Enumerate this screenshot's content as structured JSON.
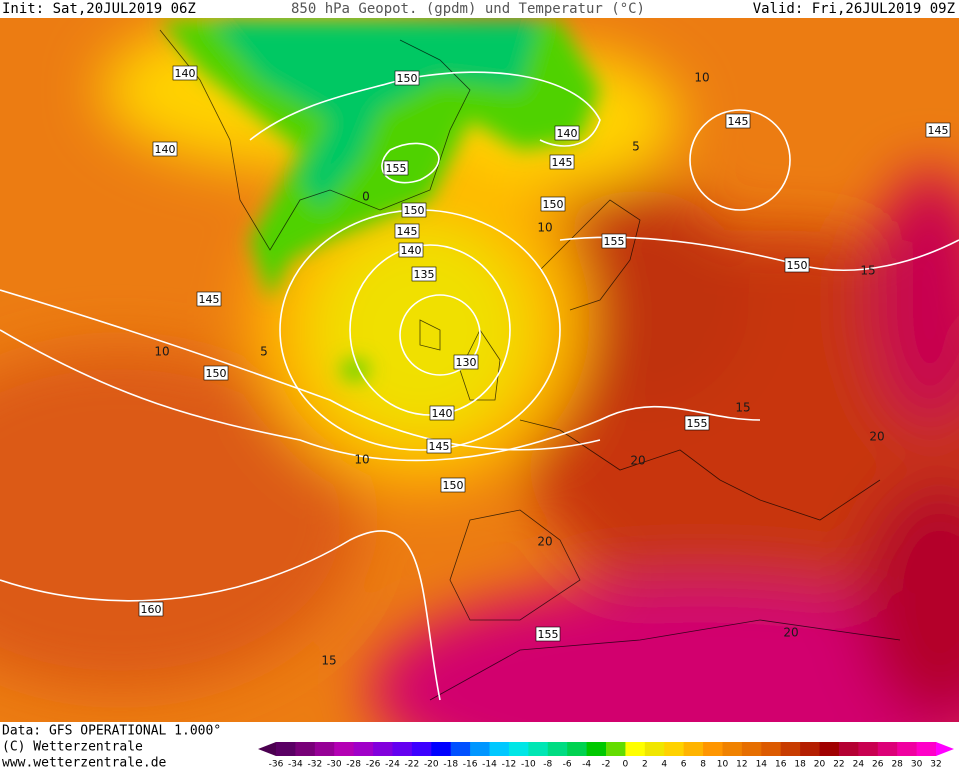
{
  "header": {
    "init": "Init: Sat,20JUL2019 06Z",
    "title": "850 hPa Geopot. (gpdm) und Temperatur (°C)",
    "valid": "Valid: Fri,26JUL2019 09Z"
  },
  "map": {
    "geopotential_labels": [
      140,
      150,
      140,
      140,
      145,
      145,
      155,
      145,
      150,
      150,
      145,
      140,
      155,
      135,
      150,
      145,
      130,
      150,
      140,
      155,
      145,
      150,
      160,
      155
    ],
    "temperature_labels": [
      10,
      5,
      10,
      5,
      10,
      0,
      15,
      15,
      20,
      20,
      10,
      20,
      20,
      15
    ]
  },
  "footer": {
    "source": "Data: GFS OPERATIONAL 1.000°",
    "copyright": "(C) Wetterzentrale",
    "url": "www.wetterzentrale.de"
  },
  "colorbar": {
    "ticks": [
      -36,
      -34,
      -32,
      -30,
      -28,
      -26,
      -24,
      -22,
      -20,
      -18,
      -16,
      -14,
      -12,
      -10,
      -8,
      -6,
      -4,
      -2,
      0,
      2,
      4,
      6,
      8,
      10,
      12,
      14,
      16,
      18,
      20,
      22,
      24,
      26,
      28,
      30,
      32
    ],
    "colors": [
      "#4b0050",
      "#5a0064",
      "#780078",
      "#960096",
      "#b400b4",
      "#a000c8",
      "#8200dc",
      "#6400f0",
      "#3c00ff",
      "#0000ff",
      "#0050ff",
      "#0096ff",
      "#00c8ff",
      "#00e6e6",
      "#00e6b4",
      "#00dc82",
      "#00d250",
      "#00c800",
      "#64dc00",
      "#ffff00",
      "#f0e600",
      "#ffd200",
      "#ffb400",
      "#ff9600",
      "#f08200",
      "#e66e00",
      "#dc5a00",
      "#c83c00",
      "#b41e00",
      "#a00000",
      "#b40032",
      "#c80050",
      "#dc0078",
      "#f000a0",
      "#ff00c8",
      "#ff00ff"
    ]
  }
}
